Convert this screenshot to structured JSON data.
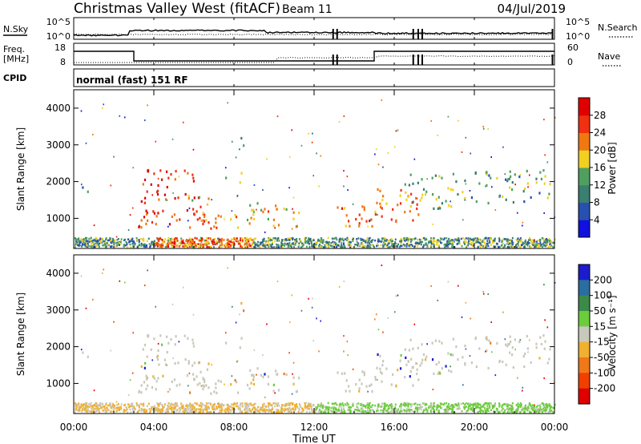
{
  "header": {
    "title": "Christmas Valley West (fitACF)",
    "beam": "Beam 11",
    "date": "04/Jul/2019"
  },
  "strip_labels": {
    "nsky": "N.Sky",
    "nsearch": "N.Search",
    "freq": "Freq.",
    "freq_unit": "[MHz]",
    "nave": "Nave",
    "cpid": "CPID",
    "cpid_text": "normal (fast) 151 RF"
  },
  "strip_ticks": {
    "noise_left_top": "10^5",
    "noise_left_bottom": "10^0",
    "noise_right_top": "10^5",
    "noise_right_bottom": "10^0",
    "freq_top": "18",
    "freq_bottom": "8",
    "nave_top": "60",
    "nave_bottom": "0"
  },
  "colors": {
    "power": [
      "#1010e0",
      "#2850b0",
      "#3a7f70",
      "#4fa060",
      "#f0d020",
      "#f07810",
      "#f03010",
      "#e00000"
    ],
    "velocity": [
      "#1c1ccc",
      "#2a6ea0",
      "#3c8a4a",
      "#6ccc3c",
      "#c8c8bc",
      "#f0b030",
      "#f07818",
      "#f04000",
      "#e00000"
    ]
  },
  "chart_data": [
    {
      "type": "heatmap",
      "quantity": "power",
      "ylabel": "Slant Range [km]",
      "y_ticks": [
        "1000",
        "2000",
        "3000",
        "4000"
      ],
      "y_range": [
        180,
        4500
      ],
      "x_range_hours": [
        0,
        24
      ],
      "colorbar_label": "Power [dB]",
      "colorbar_ticks": [
        "4",
        "8",
        "12",
        "16",
        "20",
        "24",
        "28"
      ],
      "colorbar_range": [
        0,
        32
      ]
    },
    {
      "type": "heatmap",
      "quantity": "velocity",
      "ylabel": "Slant Range [km]",
      "y_ticks": [
        "1000",
        "2000",
        "3000",
        "4000"
      ],
      "y_range": [
        180,
        4500
      ],
      "x_range_hours": [
        0,
        24
      ],
      "colorbar_label": "Velocity [m s⁻¹]",
      "colorbar_ticks": [
        "200",
        "100",
        "50",
        "15",
        "-15",
        "-50",
        "-100",
        "-200"
      ]
    }
  ],
  "x_axis": {
    "label": "Time UT",
    "ticks": [
      "00:00",
      "04:00",
      "08:00",
      "12:00",
      "16:00",
      "20:00",
      "00:00"
    ]
  }
}
